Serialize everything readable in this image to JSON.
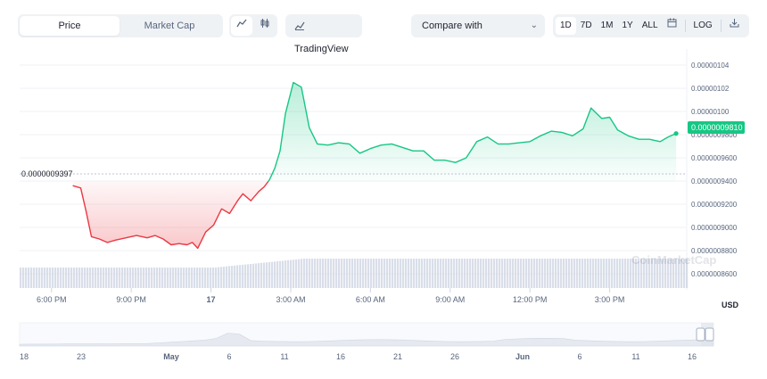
{
  "toolbar": {
    "metric_tabs": [
      "Price",
      "Market Cap"
    ],
    "active_metric": "Price",
    "chart_style_icons": [
      "line-chart-icon",
      "candlestick-icon"
    ],
    "tradingview_label": "TradingView",
    "compare_label": "Compare with",
    "ranges": [
      "1D",
      "7D",
      "1M",
      "1Y",
      "ALL"
    ],
    "active_range": "1D",
    "log_label": "LOG",
    "calendar_icon": "calendar-icon",
    "download_icon": "download-icon"
  },
  "colors": {
    "up": "#16c784",
    "down": "#ea3943",
    "volume": "#cfd6e4",
    "grid": "#eff2f5",
    "text": "#58667e"
  },
  "watermark": "CoinMarketCap",
  "chart_data": {
    "type": "line",
    "currency": "USD",
    "reference_price_label": "0.0000009397",
    "current_price_label": "0.0000009810",
    "y_tick_labels": [
      "0.00000104",
      "0.00000102",
      "0.00000100",
      "0.0000009800",
      "0.0000009600",
      "0.0000009400",
      "0.0000009200",
      "0.0000009000",
      "0.0000008800",
      "0.0000008600"
    ],
    "ylim": [
      8.5e-07,
      1.05e-06
    ],
    "y_ticks": [
      1.04e-06,
      1.02e-06,
      1e-06,
      9.8e-07,
      9.6e-07,
      9.4e-07,
      9.2e-07,
      9e-07,
      8.8e-07,
      8.6e-07
    ],
    "reference_price": 9.397e-07,
    "x_tick_labels": [
      "6:00 PM",
      "9:00 PM",
      "17",
      "3:00 AM",
      "6:00 AM",
      "9:00 AM",
      "12:00 PM",
      "3:00 PM"
    ],
    "x_tick_hours": [
      18,
      21,
      24,
      27,
      30,
      33,
      36,
      39
    ],
    "xlim": [
      16.8,
      41.9
    ],
    "series": [
      {
        "x": [
          18.8,
          19.1,
          19.3,
          19.5,
          19.8,
          20.1,
          20.4,
          20.8,
          21.2,
          21.6,
          21.9,
          22.2,
          22.5,
          22.8,
          23.1,
          23.3,
          23.5,
          23.8,
          24.1,
          24.4,
          24.7,
          25.0,
          25.2,
          25.5,
          25.8,
          26.0,
          26.2,
          26.4,
          26.6,
          26.8,
          27.1,
          27.4,
          27.7,
          28.0,
          28.4,
          28.8,
          29.2,
          29.6,
          30.0,
          30.4,
          30.8,
          31.2,
          31.6,
          32.0,
          32.4,
          32.8,
          33.2,
          33.6,
          34.0,
          34.4,
          34.8,
          35.2,
          35.6,
          36.0,
          36.4,
          36.8,
          37.2,
          37.6,
          38.0,
          38.3,
          38.7,
          39.0,
          39.3,
          39.7,
          40.1,
          40.5,
          40.9,
          41.2,
          41.5
        ],
        "y": [
          9.36e-07,
          9.34e-07,
          9.14e-07,
          8.92e-07,
          8.9e-07,
          8.87e-07,
          8.89e-07,
          8.91e-07,
          8.93e-07,
          8.91e-07,
          8.93e-07,
          8.9e-07,
          8.85e-07,
          8.86e-07,
          8.85e-07,
          8.87e-07,
          8.82e-07,
          8.96e-07,
          9.02e-07,
          9.16e-07,
          9.12e-07,
          9.23e-07,
          9.29e-07,
          9.23e-07,
          9.31e-07,
          9.35e-07,
          9.41e-07,
          9.51e-07,
          9.66e-07,
          9.98e-07,
          1.025e-06,
          1.021e-06,
          9.86e-07,
          9.72e-07,
          9.71e-07,
          9.73e-07,
          9.72e-07,
          9.64e-07,
          9.68e-07,
          9.71e-07,
          9.72e-07,
          9.69e-07,
          9.66e-07,
          9.66e-07,
          9.58e-07,
          9.58e-07,
          9.56e-07,
          9.6e-07,
          9.74e-07,
          9.78e-07,
          9.72e-07,
          9.72e-07,
          9.73e-07,
          9.74e-07,
          9.79e-07,
          9.83e-07,
          9.82e-07,
          9.79e-07,
          9.85e-07,
          1.003e-06,
          9.94e-07,
          9.95e-07,
          9.84e-07,
          9.79e-07,
          9.76e-07,
          9.76e-07,
          9.74e-07,
          9.78e-07,
          9.81e-07
        ]
      }
    ],
    "navigator": {
      "x_tick_labels": [
        "18",
        "23",
        "May",
        "6",
        "11",
        "16",
        "21",
        "26",
        "Jun",
        "6",
        "11",
        "16"
      ]
    }
  }
}
